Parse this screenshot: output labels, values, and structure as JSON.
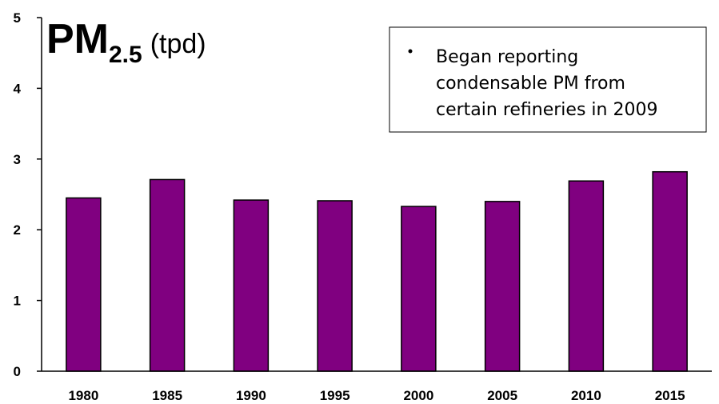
{
  "chart_data": {
    "type": "bar",
    "title": {
      "main": "PM",
      "subscript": "2.5",
      "unit": "(tpd)"
    },
    "annotation": [
      "Began reporting",
      "condensable PM from",
      "certain refineries in 2009"
    ],
    "categories": [
      "1980",
      "1985",
      "1990",
      "1995",
      "2000",
      "2005",
      "2010",
      "2015"
    ],
    "values": [
      2.45,
      2.71,
      2.42,
      2.41,
      2.33,
      2.4,
      2.69,
      2.82
    ],
    "color": "#800080",
    "ylim": [
      0,
      5
    ],
    "yticks": [
      0,
      1,
      2,
      3,
      4,
      5
    ],
    "grid": false
  }
}
